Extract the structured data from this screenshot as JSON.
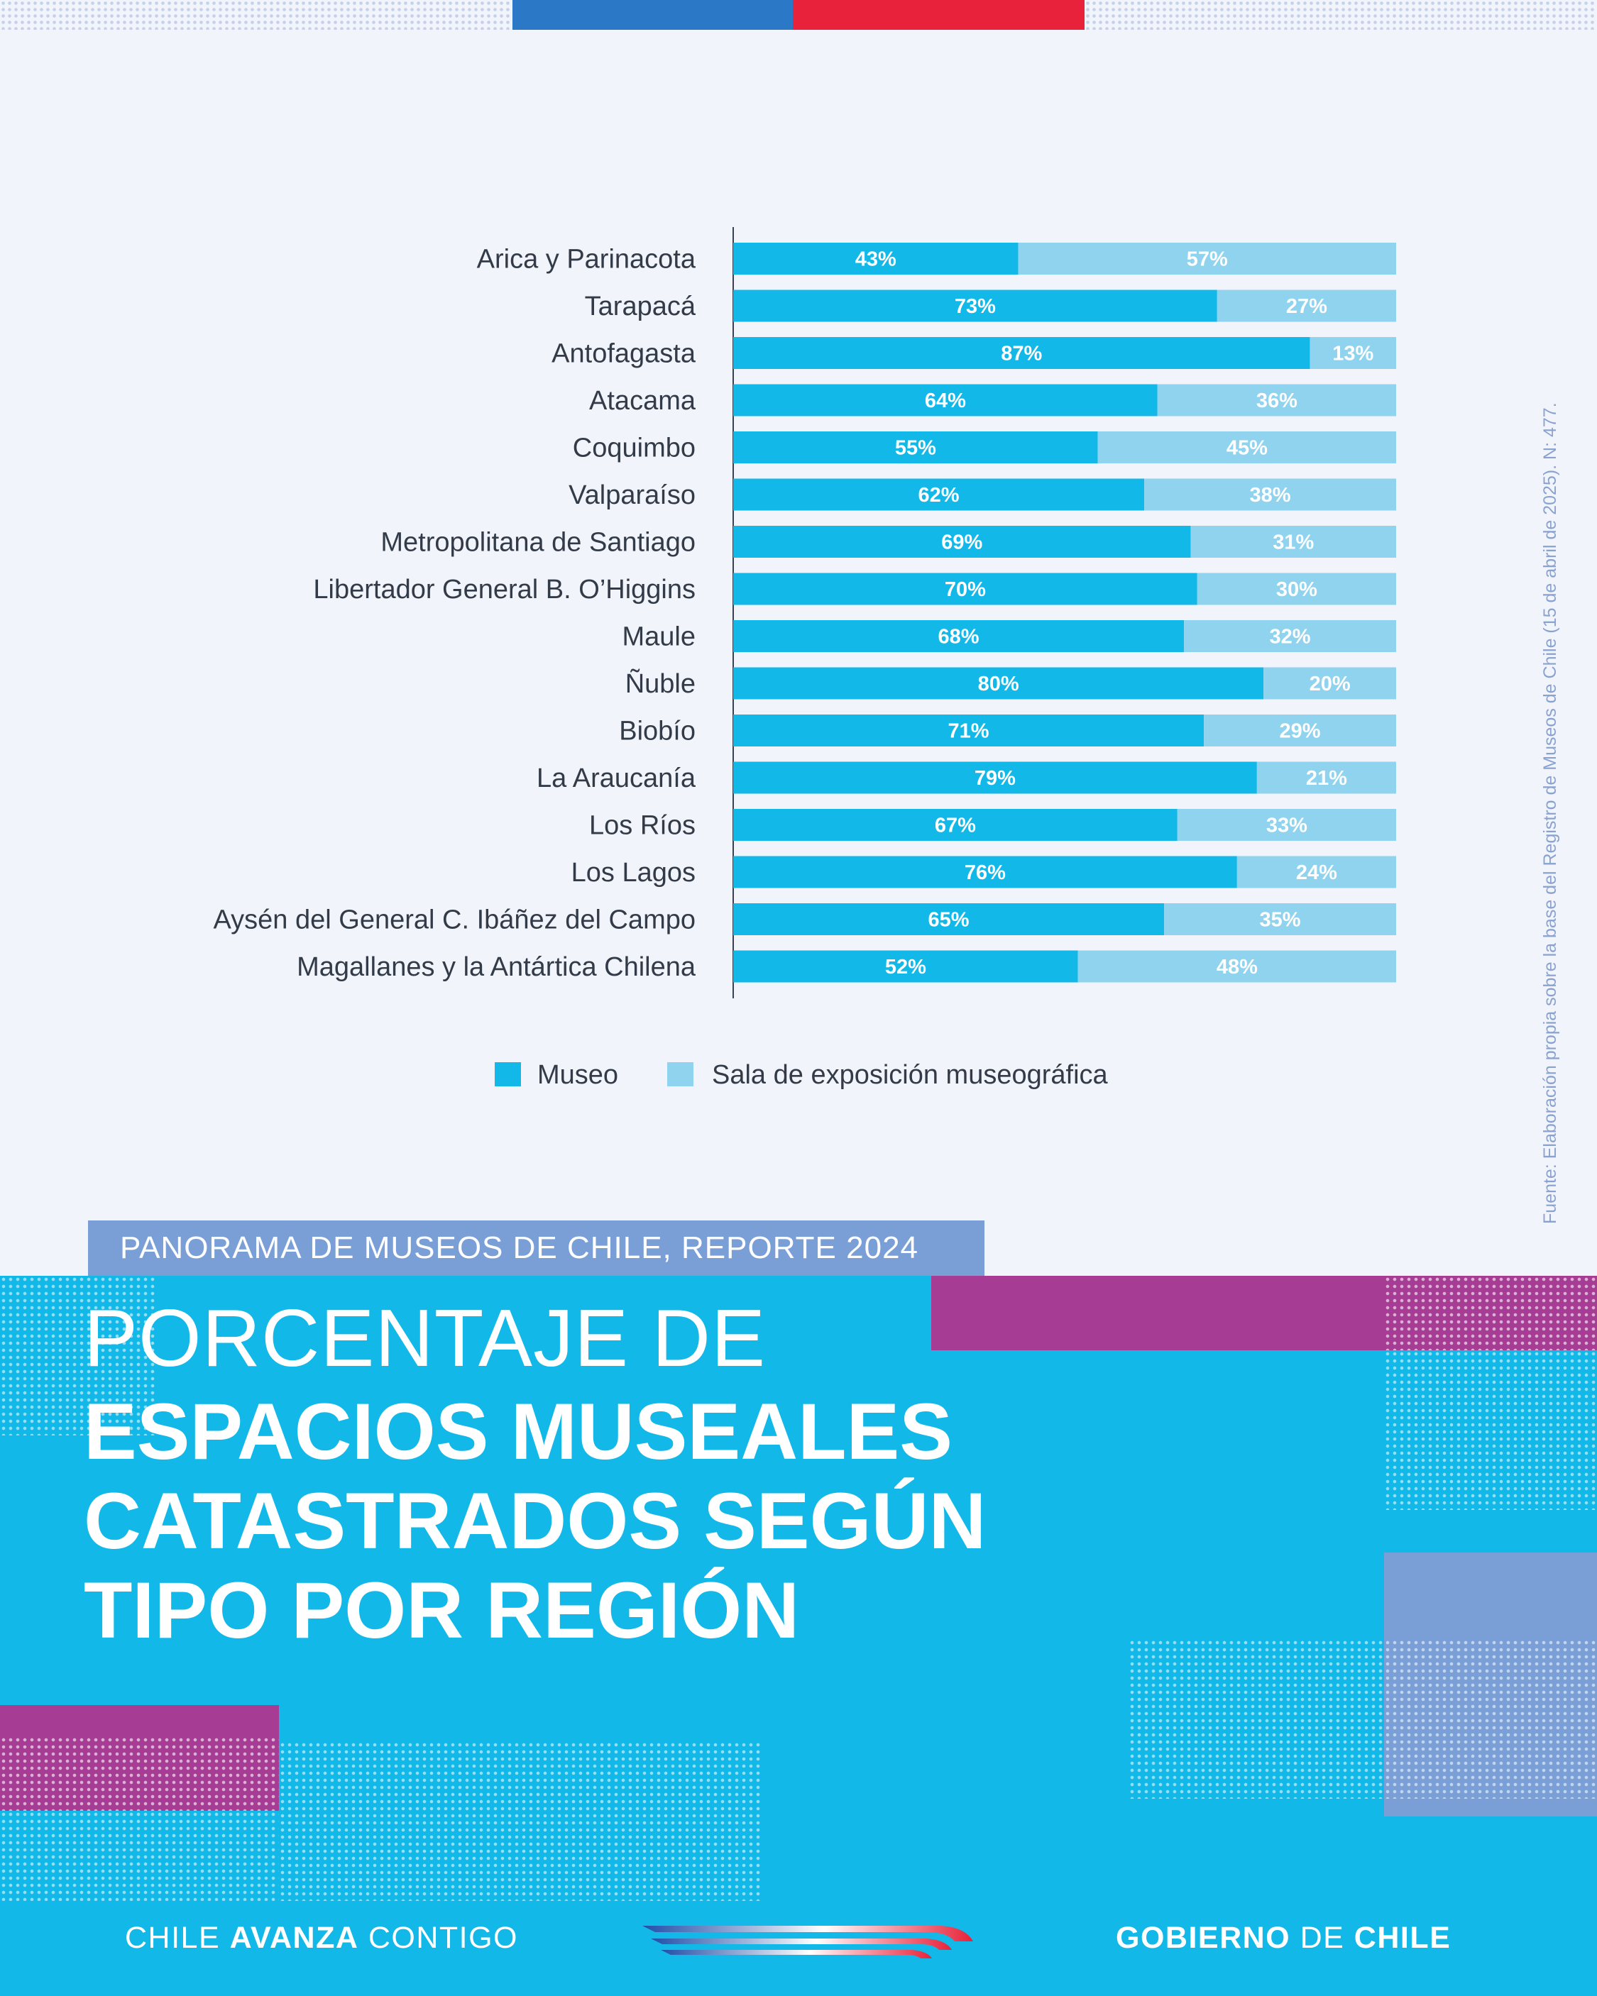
{
  "header": {
    "kicker": "PANORAMA DE MUSEOS DE CHILE, REPORTE 2024",
    "title_line1": "PORCENTAJE DE",
    "title_line2": "ESPACIOS MUSEALES",
    "title_line3": "CATASTRADOS SEGÚN",
    "title_line4": "TIPO POR REGIÓN"
  },
  "source_note": "Fuente: Elaboración propia sobre la base del Registro de Museos de Chile (15 de abril de 2025). N: 477.",
  "footer": {
    "left_a": "CHILE ",
    "left_b": "AVANZA",
    "left_c": " CONTIGO",
    "right_a": "GOBIERNO",
    "right_b": " DE ",
    "right_c": "CHILE"
  },
  "colors": {
    "museo": "#12b8e8",
    "sala": "#8fd3ef",
    "accent_blue": "#2a78c6",
    "accent_red": "#e8223a",
    "magenta": "#a63c93",
    "periwinkle": "#7a9fd7"
  },
  "chart_data": {
    "type": "bar",
    "orientation": "horizontal",
    "stacked": true,
    "value_format": "percent",
    "xlim": [
      0,
      100
    ],
    "legend_position": "bottom",
    "categories": [
      "Arica y Parinacota",
      "Tarapacá",
      "Antofagasta",
      "Atacama",
      "Coquimbo",
      "Valparaíso",
      "Metropolitana de Santiago",
      "Libertador General B. O’Higgins",
      "Maule",
      "Ñuble",
      "Biobío",
      "La Araucanía",
      "Los Ríos",
      "Los Lagos",
      "Aysén del General C. Ibáñez del Campo",
      "Magallanes y la Antártica Chilena"
    ],
    "series": [
      {
        "name": "Museo",
        "color": "#12b8e8",
        "values": [
          43,
          73,
          87,
          64,
          55,
          62,
          69,
          70,
          68,
          80,
          71,
          79,
          67,
          76,
          65,
          52
        ]
      },
      {
        "name": "Sala de exposición museográfica",
        "color": "#8fd3ef",
        "values": [
          57,
          27,
          13,
          36,
          45,
          38,
          31,
          30,
          32,
          20,
          29,
          21,
          33,
          24,
          35,
          48
        ]
      }
    ]
  }
}
